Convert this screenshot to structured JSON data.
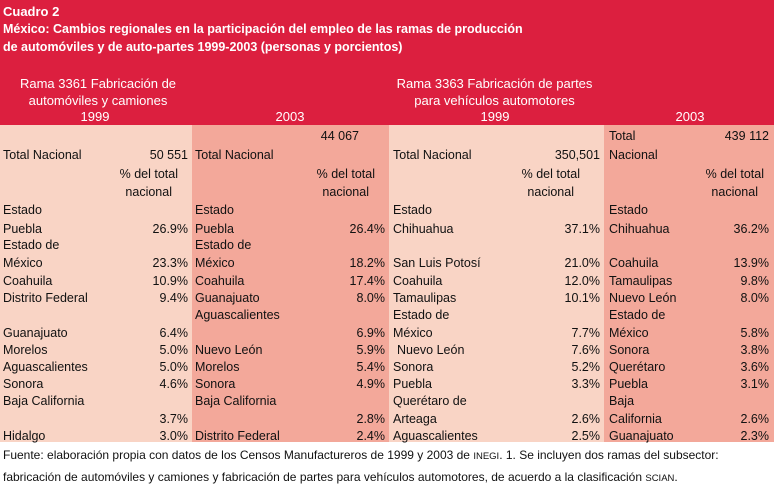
{
  "header": {
    "cuadro": "Cuadro 2",
    "title_line1": "México: Cambios regionales en la participación del empleo de las ramas de producción",
    "title_line2": "de automóviles y de auto-partes 1999-2003 (personas y porcientos)",
    "rama1_line1": "Rama 3361 Fabricación de",
    "rama1_line2": "automóviles y camiones",
    "rama2_line1": "Rama 3363 Fabricación de partes",
    "rama2_line2": "para vehículos automotores",
    "years": [
      "1999",
      "2003",
      "1999",
      "2003"
    ]
  },
  "c1": {
    "total_label": "Total Nacional",
    "total_value": "50 551",
    "pct_line1": "% del total",
    "pct_line2": "nacional",
    "estado": "Estado",
    "rows": [
      {
        "name": "Puebla",
        "value": "26.9%"
      },
      {
        "name": "Estado de",
        "value": ""
      },
      {
        "name": "México",
        "value": "23.3%"
      },
      {
        "name": "Coahuila",
        "value": "10.9%"
      },
      {
        "name": "Distrito Federal",
        "value": "9.4%"
      },
      {
        "name": "Guanajuato",
        "value": "6.4%"
      },
      {
        "name": "Morelos",
        "value": "5.0%"
      },
      {
        "name": "Aguascalientes",
        "value": "5.0%"
      },
      {
        "name": "Sonora",
        "value": "4.6%"
      },
      {
        "name": "Baja California",
        "value": ""
      },
      {
        "name": "",
        "value": "3.7%"
      },
      {
        "name": "Hidalgo",
        "value": "3.0%"
      }
    ]
  },
  "c2": {
    "total_value": "44 067",
    "total_label": "Total Nacional",
    "pct_line1": "% del total",
    "pct_line2": "nacional",
    "estado": "Estado",
    "rows": [
      {
        "name": "Puebla",
        "value": "26.4%"
      },
      {
        "name": "Estado de",
        "value": ""
      },
      {
        "name": "México",
        "value": "18.2%"
      },
      {
        "name": "Coahuila",
        "value": "17.4%"
      },
      {
        "name": "Guanajuato",
        "value": "8.0%"
      },
      {
        "name": "Aguascalientes",
        "value": ""
      },
      {
        "name": "",
        "value": "6.9%"
      },
      {
        "name": "Nuevo León",
        "value": "5.9%"
      },
      {
        "name": "Morelos",
        "value": "5.4%"
      },
      {
        "name": "Sonora",
        "value": "4.9%"
      },
      {
        "name": "Baja California",
        "value": ""
      },
      {
        "name": "",
        "value": "2.8%"
      },
      {
        "name": "Distrito Federal",
        "value": "2.4%"
      }
    ]
  },
  "c3": {
    "total_label": "Total Nacional",
    "total_value": "350,501",
    "pct_line1": "% del total",
    "pct_line2": "nacional",
    "estado": "Estado",
    "rows": [
      {
        "name": "Chihuahua",
        "value": "37.1%"
      },
      {
        "name": "San Luis Potosí",
        "value": "21.0%"
      },
      {
        "name": "Coahuila",
        "value": "12.0%"
      },
      {
        "name": "Tamaulipas",
        "value": "10.1%"
      },
      {
        "name": "Estado de",
        "value": ""
      },
      {
        "name": "México",
        "value": "7.7%"
      },
      {
        "name": "Nuevo León",
        "value": "7.6%"
      },
      {
        "name": "Sonora",
        "value": "5.2%"
      },
      {
        "name": "Puebla",
        "value": "3.3%"
      },
      {
        "name": "Querétaro de",
        "value": ""
      },
      {
        "name": "Arteaga",
        "value": "2.6%"
      },
      {
        "name": "Aguascalientes",
        "value": "2.5%"
      }
    ]
  },
  "c4": {
    "total_label1": "Total",
    "total_label2": "Nacional",
    "total_value": "439 112",
    "pct_line1": "% del total",
    "pct_line2": "nacional",
    "estado": "Estado",
    "rows": [
      {
        "name": "Chihuahua",
        "value": "36.2%"
      },
      {
        "name": "Coahuila",
        "value": "13.9%"
      },
      {
        "name": "Tamaulipas",
        "value": "9.8%"
      },
      {
        "name": "Nuevo León",
        "value": "8.0%"
      },
      {
        "name": "Estado de",
        "value": ""
      },
      {
        "name": "México",
        "value": "5.8%"
      },
      {
        "name": "Sonora",
        "value": "3.8%"
      },
      {
        "name": "Querétaro",
        "value": "3.6%"
      },
      {
        "name": "Puebla",
        "value": "3.1%"
      },
      {
        "name": "Baja",
        "value": ""
      },
      {
        "name": "California",
        "value": "2.6%"
      },
      {
        "name": "Guanajuato",
        "value": "2.3%"
      }
    ]
  },
  "footer": {
    "part1": "Fuente: elaboración propia con datos de los Censos Manufactureros de 1999 y 2003 de ",
    "inegi": "INEGI",
    "part2": ". 1. Se incluyen dos ramas del subsector: fabricación de automóviles y camiones y fabricación de partes para vehículos automotores, de acuerdo a la clasificación ",
    "scian": "SCIAN",
    "part3": "."
  }
}
